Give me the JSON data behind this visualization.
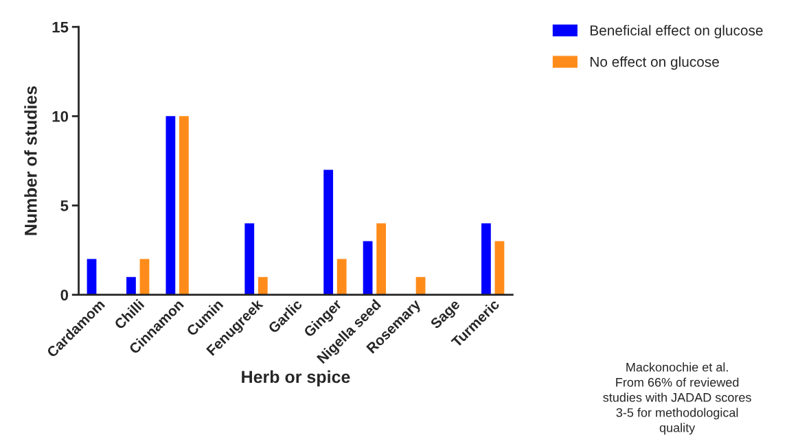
{
  "chart_data": {
    "type": "bar",
    "xlabel": "Herb or spice",
    "ylabel": "Number of studies",
    "categories": [
      "Cardamom",
      "Chilli",
      "Cinnamon",
      "Cumin",
      "Fenugreek",
      "Garlic",
      "Ginger",
      "Nigella seed",
      "Rosemary",
      "Sage",
      "Turmeric"
    ],
    "series": [
      {
        "name": "Beneficial effect on glucose",
        "color": "#0000ff",
        "values": [
          2,
          1,
          10,
          0,
          4,
          0,
          7,
          3,
          0,
          0,
          4
        ]
      },
      {
        "name": "No effect on glucose",
        "color": "#ff8c1a",
        "values": [
          0,
          2,
          10,
          0,
          1,
          0,
          2,
          4,
          1,
          0,
          3
        ]
      }
    ],
    "ylim": [
      0,
      15
    ],
    "yticks": [
      0,
      5,
      10,
      15
    ],
    "grid": false,
    "legend": "top right",
    "annotations": [
      "Mackonochie et al.\nFrom 66% of reviewed\nstudies with JADAD scores\n3-5 for methodological\nquality"
    ]
  }
}
